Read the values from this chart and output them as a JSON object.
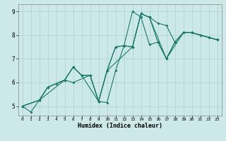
{
  "title": "",
  "xlabel": "Humidex (Indice chaleur)",
  "bg_color": "#cce8e8",
  "grid_color": "#aad0d0",
  "line_color": "#1a7a6a",
  "xlim": [
    -0.5,
    23.5
  ],
  "ylim": [
    4.6,
    9.3
  ],
  "yticks": [
    5,
    6,
    7,
    8,
    9
  ],
  "xticks": [
    0,
    1,
    2,
    3,
    4,
    5,
    6,
    7,
    8,
    9,
    10,
    11,
    12,
    13,
    14,
    15,
    16,
    17,
    18,
    19,
    20,
    21,
    22,
    23
  ],
  "series1_x": [
    0,
    1,
    2,
    3,
    4,
    5,
    6,
    7,
    8,
    9,
    10,
    11,
    12,
    13,
    14,
    15,
    16,
    17,
    18,
    19,
    20,
    21,
    22,
    23
  ],
  "series1_y": [
    5.0,
    4.75,
    5.25,
    5.8,
    5.95,
    6.1,
    6.65,
    6.3,
    6.3,
    5.2,
    5.15,
    6.5,
    7.55,
    7.5,
    8.9,
    8.75,
    8.5,
    8.4,
    7.7,
    8.1,
    8.1,
    8.0,
    7.9,
    7.8
  ],
  "series2_x": [
    0,
    2,
    3,
    5,
    6,
    7,
    8,
    9,
    10,
    11,
    12,
    13,
    14,
    15,
    16,
    17,
    18,
    19,
    20,
    21,
    22,
    23
  ],
  "series2_y": [
    5.0,
    5.25,
    5.8,
    6.1,
    6.65,
    6.3,
    6.3,
    5.2,
    6.5,
    7.5,
    7.55,
    9.0,
    8.75,
    7.6,
    7.7,
    7.0,
    7.7,
    8.1,
    8.1,
    8.0,
    7.9,
    7.8
  ],
  "series3_x": [
    0,
    2,
    5,
    6,
    7,
    9,
    10,
    11,
    12,
    13,
    14,
    15,
    16,
    17,
    19,
    20,
    21,
    22,
    23
  ],
  "series3_y": [
    5.0,
    5.25,
    6.1,
    6.65,
    6.3,
    5.2,
    6.5,
    7.5,
    7.55,
    7.5,
    8.9,
    8.75,
    7.7,
    7.0,
    8.1,
    8.1,
    8.0,
    7.9,
    7.8
  ],
  "series4_x": [
    0,
    2,
    3,
    5,
    6,
    8,
    9,
    10,
    13,
    14,
    15,
    17,
    18,
    19,
    20,
    23
  ],
  "series4_y": [
    5.0,
    5.25,
    5.8,
    6.1,
    6.0,
    6.3,
    5.2,
    6.5,
    7.5,
    8.9,
    8.75,
    7.0,
    7.7,
    8.1,
    8.1,
    7.8
  ]
}
